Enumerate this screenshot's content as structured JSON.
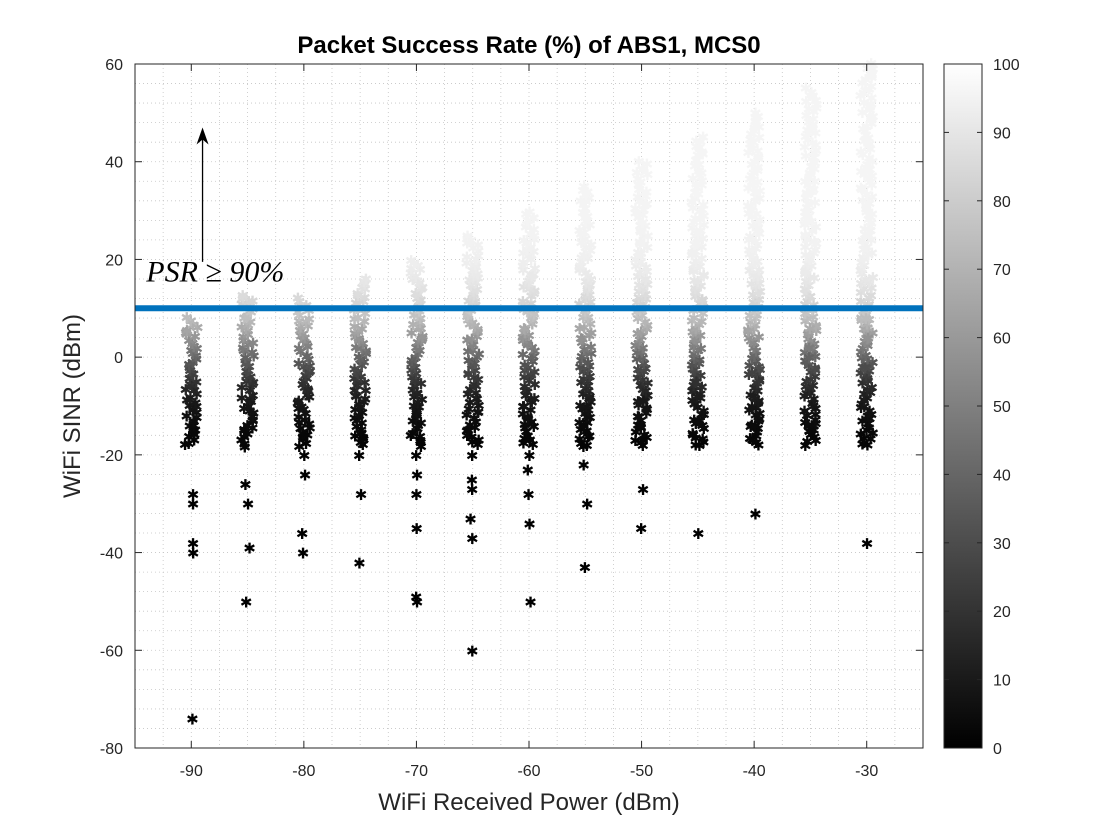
{
  "chart_data": {
    "type": "scatter",
    "title": "Packet Success Rate (%) of ABS1, MCS0",
    "xlabel": "WiFi Received Power (dBm)",
    "ylabel": "WiFi SINR (dBm)",
    "xlim": [
      -95,
      -25
    ],
    "ylim": [
      -80,
      60
    ],
    "xticks": [
      -90,
      -80,
      -70,
      -60,
      -50,
      -40,
      -30
    ],
    "yticks": [
      -80,
      -60,
      -40,
      -20,
      0,
      20,
      40,
      60
    ],
    "grid": "on (major and minor, dotted)",
    "marker": "asterisk",
    "colormap": "gray",
    "colorbar": {
      "range": [
        0,
        100
      ],
      "ticks": [
        0,
        10,
        20,
        30,
        40,
        50,
        60,
        70,
        80,
        90,
        100
      ]
    },
    "threshold_line": {
      "y": 10,
      "color": "#0072BD"
    },
    "annotation": {
      "text": "PSR ≥ 90%",
      "arrow": "up"
    },
    "columns": [
      {
        "x": -90,
        "ymax": 8,
        "outliers": [
          -28,
          -30,
          -38,
          -40,
          -74
        ]
      },
      {
        "x": -85,
        "ymax": 13,
        "outliers": [
          -26,
          -30,
          -39,
          -50
        ]
      },
      {
        "x": -80,
        "ymax": 12,
        "outliers": [
          -20,
          -24,
          -36,
          -40
        ]
      },
      {
        "x": -75,
        "ymax": 16,
        "outliers": [
          -20,
          -28,
          -42
        ]
      },
      {
        "x": -70,
        "ymax": 20,
        "outliers": [
          -20,
          -24,
          -28,
          -35,
          -49,
          -50
        ]
      },
      {
        "x": -65,
        "ymax": 25,
        "outliers": [
          -20,
          -25,
          -27,
          -33,
          -37,
          -60
        ]
      },
      {
        "x": -60,
        "ymax": 30,
        "outliers": [
          -20,
          -23,
          -28,
          -34,
          -50
        ]
      },
      {
        "x": -55,
        "ymax": 35,
        "outliers": [
          -10,
          -14,
          -18,
          -22,
          -30,
          -43
        ]
      },
      {
        "x": -50,
        "ymax": 40,
        "outliers": [
          -9,
          -14,
          -17,
          -27,
          -35
        ]
      },
      {
        "x": -45,
        "ymax": 45,
        "outliers": [
          -5,
          -8,
          -13,
          -18,
          -36
        ]
      },
      {
        "x": -40,
        "ymax": 50,
        "outliers": [
          -3,
          -8,
          -14,
          -32
        ]
      },
      {
        "x": -35,
        "ymax": 55,
        "outliers": [
          6,
          2,
          0,
          -14,
          -15
        ]
      },
      {
        "x": -30,
        "ymax": 60,
        "outliers": [
          8,
          4,
          -2,
          -38
        ]
      }
    ]
  }
}
